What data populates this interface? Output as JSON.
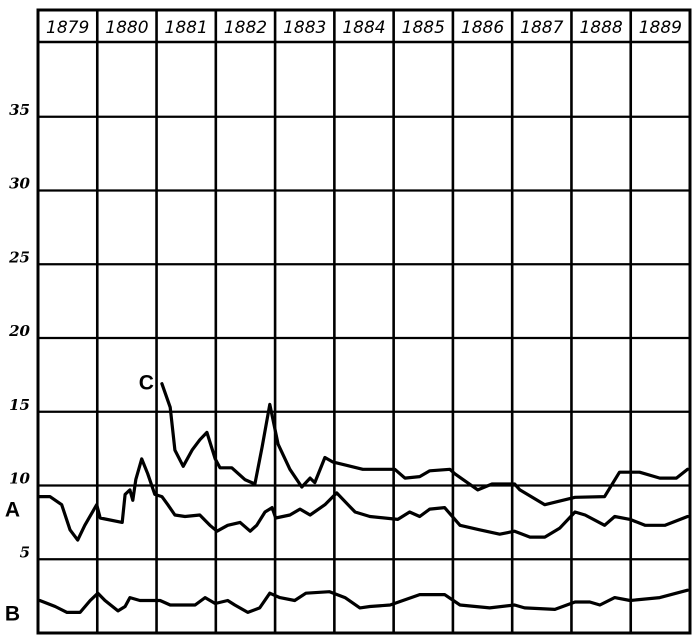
{
  "chart_data": {
    "type": "line",
    "title": "",
    "xlabel": "",
    "ylabel": "",
    "x_tick_labels": [
      "1879",
      "1880",
      "1881",
      "1882",
      "1883",
      "1884",
      "1885",
      "1886",
      "1887",
      "1888",
      "1889"
    ],
    "y_tick_labels": [
      "5",
      "10",
      "15",
      "20",
      "25",
      "30",
      "35"
    ],
    "xlim": [
      1879,
      1890
    ],
    "ylim": [
      0,
      38.5
    ],
    "grid": true,
    "line_color": "#000000",
    "series": [
      {
        "name": "A",
        "points": [
          [
            1879.03,
            9.25
          ],
          [
            1879.2,
            9.25
          ],
          [
            1879.4,
            8.7
          ],
          [
            1879.54,
            7.0
          ],
          [
            1879.67,
            6.3
          ],
          [
            1879.79,
            7.3
          ],
          [
            1879.99,
            8.7
          ],
          [
            1880.05,
            7.8
          ],
          [
            1880.42,
            7.5
          ],
          [
            1880.47,
            9.4
          ],
          [
            1880.55,
            9.7
          ],
          [
            1880.6,
            9.0
          ],
          [
            1880.65,
            10.4
          ],
          [
            1880.75,
            11.8
          ],
          [
            1880.85,
            10.8
          ],
          [
            1880.97,
            9.4
          ],
          [
            1881.09,
            9.25
          ],
          [
            1881.19,
            8.7
          ],
          [
            1881.31,
            8.0
          ],
          [
            1881.48,
            7.9
          ],
          [
            1881.73,
            8.0
          ],
          [
            1881.9,
            7.3
          ],
          [
            1882.02,
            6.9
          ],
          [
            1882.2,
            7.3
          ],
          [
            1882.41,
            7.5
          ],
          [
            1882.58,
            6.9
          ],
          [
            1882.69,
            7.3
          ],
          [
            1882.83,
            8.2
          ],
          [
            1882.95,
            8.5
          ],
          [
            1883.01,
            7.8
          ],
          [
            1883.25,
            8.0
          ],
          [
            1883.42,
            8.4
          ],
          [
            1883.59,
            8.0
          ],
          [
            1883.84,
            8.7
          ],
          [
            1884.04,
            9.5
          ],
          [
            1884.23,
            8.7
          ],
          [
            1884.35,
            8.2
          ],
          [
            1884.6,
            7.9
          ],
          [
            1885.07,
            7.7
          ],
          [
            1885.27,
            8.2
          ],
          [
            1885.44,
            7.9
          ],
          [
            1885.61,
            8.4
          ],
          [
            1885.86,
            8.5
          ],
          [
            1886.12,
            7.3
          ],
          [
            1886.45,
            7.0
          ],
          [
            1886.79,
            6.7
          ],
          [
            1887.04,
            6.9
          ],
          [
            1887.3,
            6.5
          ],
          [
            1887.55,
            6.5
          ],
          [
            1887.8,
            7.1
          ],
          [
            1888.06,
            8.2
          ],
          [
            1888.23,
            8.0
          ],
          [
            1888.56,
            7.3
          ],
          [
            1888.73,
            7.9
          ],
          [
            1888.99,
            7.7
          ],
          [
            1889.24,
            7.3
          ],
          [
            1889.58,
            7.3
          ],
          [
            1889.96,
            7.9
          ]
        ]
      },
      {
        "name": "B",
        "points": [
          [
            1879.03,
            2.2
          ],
          [
            1879.29,
            1.8
          ],
          [
            1879.49,
            1.4
          ],
          [
            1879.71,
            1.4
          ],
          [
            1879.88,
            2.2
          ],
          [
            1880.01,
            2.7
          ],
          [
            1880.13,
            2.2
          ],
          [
            1880.35,
            1.5
          ],
          [
            1880.47,
            1.8
          ],
          [
            1880.55,
            2.4
          ],
          [
            1880.72,
            2.2
          ],
          [
            1881.06,
            2.2
          ],
          [
            1881.23,
            1.9
          ],
          [
            1881.65,
            1.9
          ],
          [
            1881.82,
            2.4
          ],
          [
            1881.99,
            2.0
          ],
          [
            1882.2,
            2.2
          ],
          [
            1882.32,
            1.9
          ],
          [
            1882.54,
            1.4
          ],
          [
            1882.74,
            1.7
          ],
          [
            1882.91,
            2.7
          ],
          [
            1883.08,
            2.4
          ],
          [
            1883.33,
            2.2
          ],
          [
            1883.52,
            2.7
          ],
          [
            1883.92,
            2.8
          ],
          [
            1884.18,
            2.4
          ],
          [
            1884.43,
            1.7
          ],
          [
            1884.6,
            1.8
          ],
          [
            1884.94,
            1.9
          ],
          [
            1885.44,
            2.6
          ],
          [
            1885.86,
            2.6
          ],
          [
            1886.12,
            1.9
          ],
          [
            1886.62,
            1.7
          ],
          [
            1887.04,
            1.9
          ],
          [
            1887.21,
            1.7
          ],
          [
            1887.72,
            1.6
          ],
          [
            1888.06,
            2.1
          ],
          [
            1888.31,
            2.1
          ],
          [
            1888.48,
            1.9
          ],
          [
            1888.73,
            2.4
          ],
          [
            1888.99,
            2.2
          ],
          [
            1889.49,
            2.4
          ],
          [
            1889.96,
            2.9
          ]
        ]
      },
      {
        "name": "C",
        "points": [
          [
            1881.09,
            16.9
          ],
          [
            1881.23,
            15.3
          ],
          [
            1881.31,
            12.4
          ],
          [
            1881.45,
            11.3
          ],
          [
            1881.6,
            12.4
          ],
          [
            1881.73,
            13.1
          ],
          [
            1881.85,
            13.6
          ],
          [
            1881.99,
            11.8
          ],
          [
            1882.07,
            11.2
          ],
          [
            1882.27,
            11.2
          ],
          [
            1882.49,
            10.4
          ],
          [
            1882.66,
            10.1
          ],
          [
            1882.78,
            12.6
          ],
          [
            1882.91,
            15.5
          ],
          [
            1883.05,
            12.8
          ],
          [
            1883.25,
            11.1
          ],
          [
            1883.45,
            9.9
          ],
          [
            1883.59,
            10.5
          ],
          [
            1883.67,
            10.2
          ],
          [
            1883.84,
            11.9
          ],
          [
            1883.97,
            11.6
          ],
          [
            1884.18,
            11.4
          ],
          [
            1884.48,
            11.1
          ],
          [
            1885.02,
            11.1
          ],
          [
            1885.19,
            10.5
          ],
          [
            1885.44,
            10.6
          ],
          [
            1885.61,
            11.0
          ],
          [
            1885.95,
            11.1
          ],
          [
            1886.03,
            10.8
          ],
          [
            1886.42,
            9.7
          ],
          [
            1886.66,
            10.1
          ],
          [
            1887.04,
            10.1
          ],
          [
            1887.13,
            9.7
          ],
          [
            1887.55,
            8.7
          ],
          [
            1888.06,
            9.2
          ],
          [
            1888.56,
            9.25
          ],
          [
            1888.81,
            10.9
          ],
          [
            1889.15,
            10.9
          ],
          [
            1889.49,
            10.5
          ],
          [
            1889.77,
            10.5
          ],
          [
            1889.96,
            11.1
          ]
        ]
      }
    ]
  }
}
